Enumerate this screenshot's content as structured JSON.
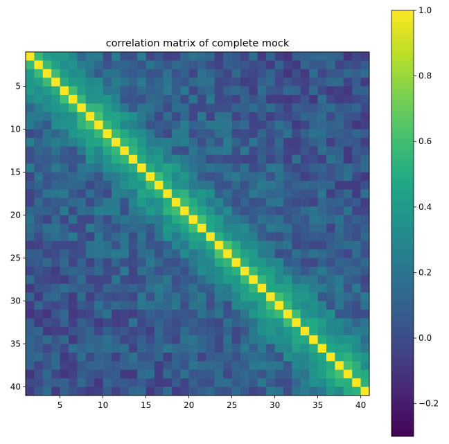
{
  "chart_data": {
    "type": "heatmap",
    "title": "correlation matrix of complete mock",
    "size": 40,
    "x_ticks": [
      "5",
      "10",
      "15",
      "20",
      "25",
      "30",
      "35",
      "40"
    ],
    "y_ticks": [
      "5",
      "10",
      "15",
      "20",
      "25",
      "30",
      "35",
      "40"
    ],
    "colormap": "viridis",
    "vmin": -0.3,
    "vmax": 1.0,
    "colorbar_ticks": [
      "1.0",
      "0.8",
      "0.6",
      "0.4",
      "0.2",
      "0.0",
      "−0.2"
    ],
    "diagonal_value": 1.0,
    "near_diagonal": [
      0.55,
      0.45,
      0.38,
      0.32,
      0.28
    ],
    "typical_off_diagonal": 0.15,
    "min_value": -0.3,
    "pattern_seed": 7
  }
}
